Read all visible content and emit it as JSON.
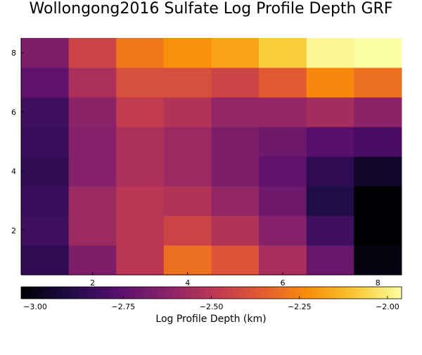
{
  "chart_data": {
    "type": "heatmap",
    "title": "Wollongong2016 Sulfate Log Profile Depth GRF",
    "x": [
      1,
      2,
      3,
      4,
      5,
      6,
      7,
      8
    ],
    "y": [
      1,
      2,
      3,
      4,
      5,
      6,
      7,
      8
    ],
    "x_range": [
      0.5,
      8.5
    ],
    "y_range": [
      0.5,
      8.5
    ],
    "x_ticks": [
      "2",
      "4",
      "6",
      "8"
    ],
    "y_ticks": [
      "2",
      "4",
      "6",
      "8"
    ],
    "grid": false,
    "colormap": "inferno",
    "colorbar": {
      "label": "Log Profile Depth (km)",
      "range": [
        -3.04,
        -1.96
      ],
      "ticks": [
        "−3.00",
        "−2.75",
        "−2.50",
        "−2.25",
        "−2.00"
      ],
      "tick_values": [
        -3.0,
        -2.75,
        -2.5,
        -2.25,
        -2.0
      ],
      "placement": "bottom"
    },
    "z": [
      [
        -2.86,
        -2.66,
        -2.5,
        -2.3,
        -2.38,
        -2.55,
        -2.72,
        -3.02
      ],
      [
        -2.82,
        -2.58,
        -2.5,
        -2.44,
        -2.52,
        -2.64,
        -2.82,
        -3.04
      ],
      [
        -2.84,
        -2.58,
        -2.5,
        -2.52,
        -2.6,
        -2.7,
        -2.9,
        -3.04
      ],
      [
        -2.86,
        -2.64,
        -2.54,
        -2.58,
        -2.66,
        -2.74,
        -2.86,
        -2.96
      ],
      [
        -2.84,
        -2.64,
        -2.54,
        -2.58,
        -2.66,
        -2.7,
        -2.76,
        -2.8
      ],
      [
        -2.82,
        -2.62,
        -2.48,
        -2.52,
        -2.6,
        -2.6,
        -2.56,
        -2.62
      ],
      [
        -2.74,
        -2.54,
        -2.4,
        -2.4,
        -2.44,
        -2.36,
        -2.24,
        -2.3
      ],
      [
        -2.66,
        -2.44,
        -2.28,
        -2.22,
        -2.18,
        -2.08,
        -1.98,
        -1.96
      ]
    ]
  }
}
